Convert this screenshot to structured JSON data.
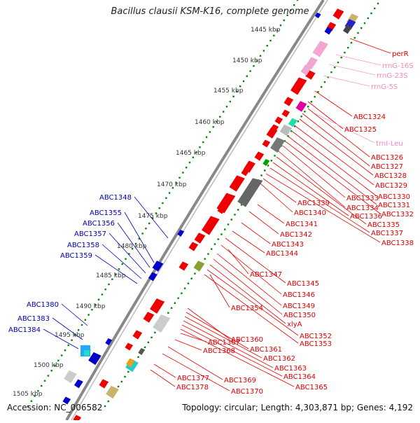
{
  "title": "Bacillus clausii KSM-K16, complete genome",
  "accession": "Accession: NC_006582",
  "topology": "Topology: circular; Length: 4,303,871 bp; Genes: 4,192",
  "scale_labels": [
    "1445 kbp",
    "1450 kbp",
    "1455 kbp",
    "1460 kbp",
    "1465 kbp",
    "1470 kbp",
    "1475 kbp",
    "1480 kbp",
    "1485 kbp",
    "1490 kbp",
    "1495 kbp",
    "1500 kbp",
    "1505 kbp"
  ],
  "colors": {
    "forward_genes": "#ee0000",
    "reverse_genes": "#0000cc",
    "rna_genes": "#f4a6d2",
    "backbone": "#888888",
    "scale_dots": "#008800"
  },
  "labels_right_red": [
    "perR",
    "ABC1324",
    "ABC1325",
    "ABC1326",
    "ABC1327",
    "ABC1328",
    "ABC1329",
    "ABC1330",
    "ABC1331",
    "ABC1332",
    "ABC1333",
    "ABC1334",
    "ABC1335",
    "ABC1336",
    "ABC1337",
    "ABC1338",
    "ABC1339",
    "ABC1340",
    "ABC1341",
    "ABC1342",
    "ABC1343",
    "ABC1344",
    "ABC1345",
    "ABC1346",
    "ABC1347",
    "ABC1349",
    "ABC1350",
    "xlyA",
    "ABC1352",
    "ABC1353",
    "ABC1354",
    "ABC1360",
    "ABC1361",
    "ABC1362",
    "ABC1363",
    "ABC1364",
    "ABC1365",
    "ABC1367",
    "ABC1368",
    "ABC1369",
    "ABC1370",
    "ABC1377",
    "ABC1378"
  ],
  "labels_right_pink": [
    "rrnG-16S",
    "rrnG-23S",
    "rrnG-5S",
    "trnI-Leu"
  ],
  "labels_left_blue": [
    "ABC1348",
    "ABC1355",
    "ABC1356",
    "ABC1357",
    "ABC1358",
    "ABC1359",
    "ABC1380",
    "ABC1383",
    "ABC1384"
  ]
}
